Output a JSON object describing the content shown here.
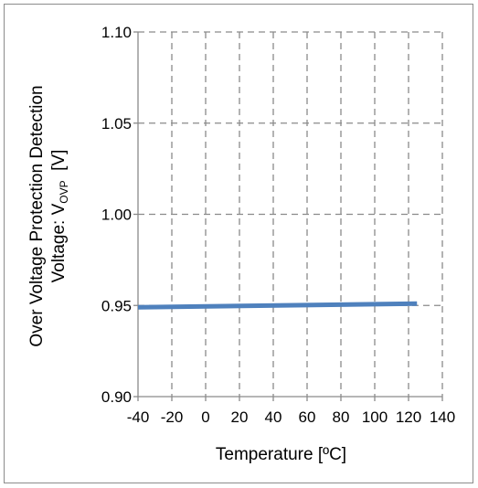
{
  "chart_data": {
    "type": "line",
    "xlabel": "Temperature [ºC]",
    "ylabel_line1": "Over Voltage Protection Detection",
    "ylabel_line2_prefix": "Voltage: V",
    "ylabel_line2_subscript": "OVP",
    "ylabel_line2_suffix": "  [V]",
    "xlim": [
      -40,
      140
    ],
    "ylim": [
      0.9,
      1.1
    ],
    "x_ticks": [
      -40,
      -20,
      0,
      20,
      40,
      60,
      80,
      100,
      120,
      140
    ],
    "x_tick_labels": [
      "-40",
      "-20",
      "0",
      "20",
      "40",
      "60",
      "80",
      "100",
      "120",
      "140"
    ],
    "y_ticks": [
      0.9,
      0.95,
      1.0,
      1.05,
      1.1
    ],
    "y_tick_labels": [
      "0.90",
      "0.95",
      "1.00",
      "1.05",
      "1.10"
    ],
    "grid": true,
    "series": [
      {
        "color": "#4f81bd",
        "x": [
          -40,
          125
        ],
        "y": [
          0.949,
          0.951
        ]
      }
    ]
  }
}
